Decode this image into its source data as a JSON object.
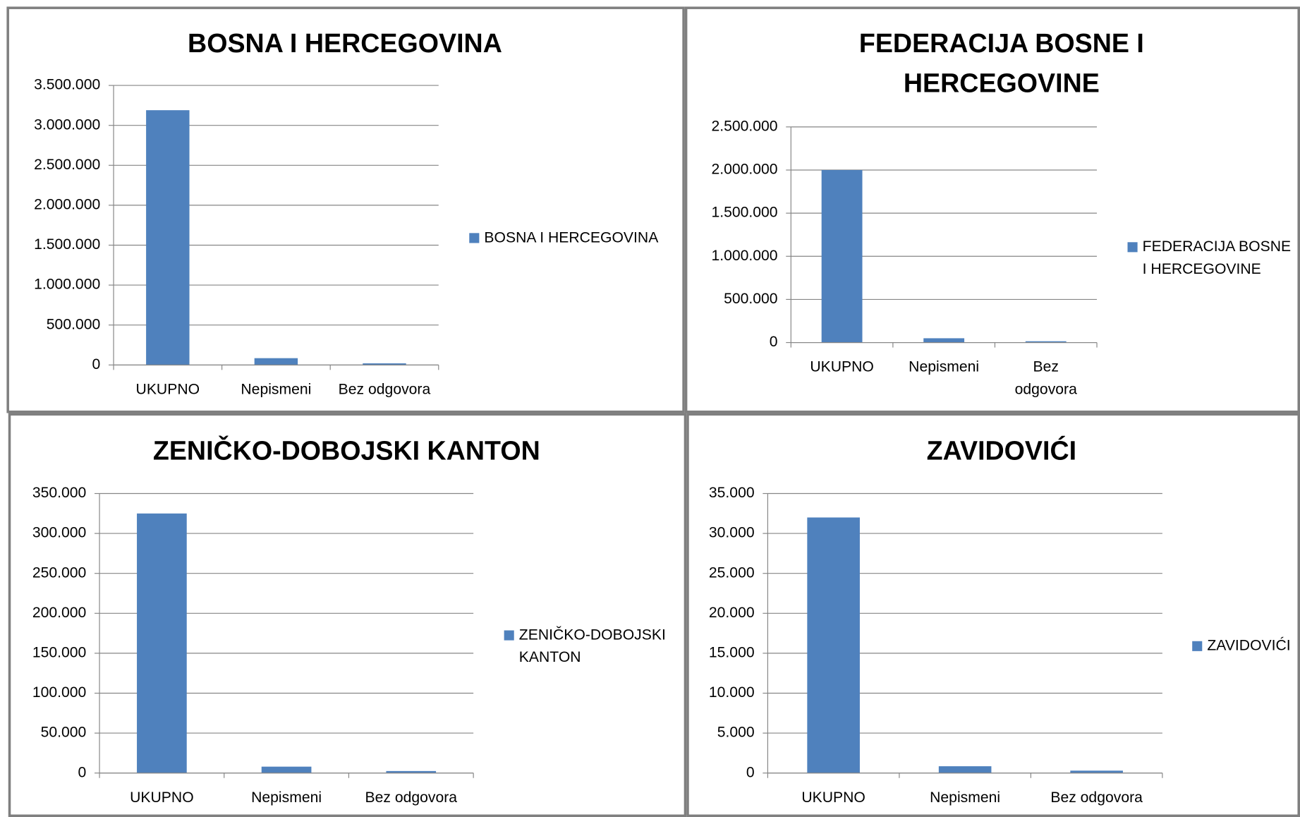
{
  "chart_data": [
    {
      "type": "bar",
      "title": "BOSNA I HERCEGOVINA",
      "categories": [
        "UKUPNO",
        "Nepismeni",
        "Bez odgovora"
      ],
      "series": [
        {
          "name": "BOSNA I HERCEGOVINA",
          "color": "#4f81bd",
          "values": [
            3190000,
            85000,
            20000
          ]
        }
      ],
      "ylim": [
        0,
        3500000
      ],
      "yticks": [
        0,
        {
          "value": 500000,
          "label": "500.000"
        },
        {
          "value": 1000000,
          "label": "1.000.000"
        },
        {
          "value": 1500000,
          "label": "1.500.000"
        },
        {
          "value": 2000000,
          "label": "2.000.000"
        },
        {
          "value": 2500000,
          "label": "2.500.000"
        },
        {
          "value": 3000000,
          "label": "3.000.000"
        },
        {
          "value": 3500000,
          "label": "3.500.000"
        }
      ],
      "grid": true,
      "legend": "right"
    },
    {
      "type": "bar",
      "title": "FEDERACIJA BOSNE I HERCEGOVINE",
      "categories": [
        "UKUPNO",
        "Nepismeni",
        "Bez odgovora"
      ],
      "series": [
        {
          "name": "FEDERACIJA BOSNE I HERCEGOVINE",
          "color": "#4f81bd",
          "values": [
            2000000,
            50000,
            15000
          ]
        }
      ],
      "ylim": [
        0,
        2500000
      ],
      "yticks": [
        0,
        {
          "value": 500000,
          "label": "500.000"
        },
        {
          "value": 1000000,
          "label": "1.000.000"
        },
        {
          "value": 1500000,
          "label": "1.500.000"
        },
        {
          "value": 2000000,
          "label": "2.000.000"
        },
        {
          "value": 2500000,
          "label": "2.500.000"
        }
      ],
      "grid": true,
      "legend": "right"
    },
    {
      "type": "bar",
      "title": "ZENIČKO-DOBOJSKI KANTON",
      "categories": [
        "UKUPNO",
        "Nepismeni",
        "Bez odgovora"
      ],
      "series": [
        {
          "name": "ZENIČKO-DOBOJSKI KANTON",
          "color": "#4f81bd",
          "values": [
            325000,
            8000,
            2500
          ]
        }
      ],
      "ylim": [
        0,
        350000
      ],
      "yticks": [
        0,
        {
          "value": 50000,
          "label": "50.000"
        },
        {
          "value": 100000,
          "label": "100.000"
        },
        {
          "value": 150000,
          "label": "150.000"
        },
        {
          "value": 200000,
          "label": "200.000"
        },
        {
          "value": 250000,
          "label": "250.000"
        },
        {
          "value": 300000,
          "label": "300.000"
        },
        {
          "value": 350000,
          "label": "350.000"
        }
      ],
      "grid": true,
      "legend": "right"
    },
    {
      "type": "bar",
      "title": "ZAVIDOVIĆI",
      "categories": [
        "UKUPNO",
        "Nepismeni",
        "Bez odgovora"
      ],
      "series": [
        {
          "name": "ZAVIDOVIĆI",
          "color": "#4f81bd",
          "values": [
            32000,
            850,
            300
          ]
        }
      ],
      "ylim": [
        0,
        35000
      ],
      "yticks": [
        0,
        {
          "value": 5000,
          "label": "5.000"
        },
        {
          "value": 10000,
          "label": "10.000"
        },
        {
          "value": 15000,
          "label": "15.000"
        },
        {
          "value": 20000,
          "label": "20.000"
        },
        {
          "value": 25000,
          "label": "25.000"
        },
        {
          "value": 30000,
          "label": "30.000"
        },
        {
          "value": 35000,
          "label": "35.000"
        }
      ],
      "grid": true,
      "legend": "right"
    }
  ]
}
